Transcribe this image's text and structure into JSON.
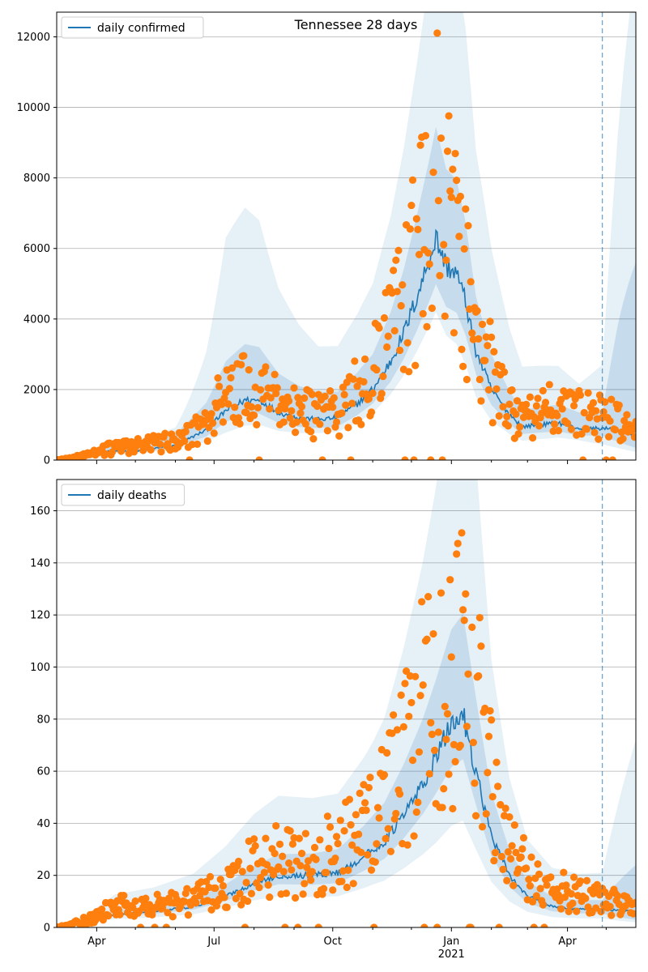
{
  "chart_data": [
    {
      "type": "line",
      "title": "Tennessee 28 days",
      "xlabel": "",
      "ylabel": "",
      "x_range": [
        "2020-03-01",
        "2021-05-24"
      ],
      "ylim": [
        0,
        12700
      ],
      "yticks": [
        0,
        2000,
        4000,
        6000,
        8000,
        10000,
        12000
      ],
      "grid": "y",
      "legend": "top-left",
      "forecast_start": "2021-04-28",
      "colors": {
        "line": "#1f77b4",
        "points": "#ff7f0e",
        "band": "#1f77b4",
        "marker_line": "#1f77b4"
      },
      "series": [
        {
          "name": "daily confirmed",
          "kind": "line"
        },
        {
          "kind": "scatter"
        },
        {
          "kind": "bands"
        }
      ],
      "line_knots": [
        [
          "2020-03-01",
          0
        ],
        [
          "2020-03-20",
          60
        ],
        [
          "2020-04-10",
          250
        ],
        [
          "2020-05-01",
          250
        ],
        [
          "2020-06-01",
          420
        ],
        [
          "2020-06-25",
          850
        ],
        [
          "2020-07-10",
          1400
        ],
        [
          "2020-07-25",
          1700
        ],
        [
          "2020-08-05",
          1700
        ],
        [
          "2020-08-20",
          1350
        ],
        [
          "2020-09-05",
          1200
        ],
        [
          "2020-09-20",
          1150
        ],
        [
          "2020-10-05",
          1200
        ],
        [
          "2020-10-20",
          1600
        ],
        [
          "2020-11-01",
          2000
        ],
        [
          "2020-11-15",
          2800
        ],
        [
          "2020-11-25",
          3600
        ],
        [
          "2020-12-05",
          4600
        ],
        [
          "2020-12-15",
          5700
        ],
        [
          "2020-12-20",
          6300
        ],
        [
          "2020-12-28",
          5500
        ],
        [
          "2021-01-05",
          5300
        ],
        [
          "2021-01-12",
          4500
        ],
        [
          "2021-01-20",
          3100
        ],
        [
          "2021-02-01",
          2000
        ],
        [
          "2021-02-15",
          1300
        ],
        [
          "2021-02-25",
          950
        ],
        [
          "2021-03-10",
          1000
        ],
        [
          "2021-03-25",
          1050
        ],
        [
          "2021-04-10",
          900
        ],
        [
          "2021-04-28",
          900
        ],
        [
          "2021-05-10",
          850
        ],
        [
          "2021-05-24",
          700
        ]
      ],
      "scatter_knots": [
        [
          "2020-03-01",
          0
        ],
        [
          "2020-03-20",
          100
        ],
        [
          "2020-04-10",
          300
        ],
        [
          "2020-05-01",
          400
        ],
        [
          "2020-06-01",
          500
        ],
        [
          "2020-06-25",
          1000
        ],
        [
          "2020-07-10",
          1800
        ],
        [
          "2020-07-25",
          2200
        ],
        [
          "2020-08-05",
          2000
        ],
        [
          "2020-08-20",
          1500
        ],
        [
          "2020-09-05",
          1300
        ],
        [
          "2020-09-20",
          1300
        ],
        [
          "2020-10-05",
          1400
        ],
        [
          "2020-10-20",
          1900
        ],
        [
          "2020-11-01",
          2300
        ],
        [
          "2020-11-15",
          3300
        ],
        [
          "2020-11-25",
          4200
        ],
        [
          "2020-12-05",
          5500
        ],
        [
          "2020-12-15",
          7500
        ],
        [
          "2020-12-20",
          9000
        ],
        [
          "2020-12-28",
          7000
        ],
        [
          "2021-01-05",
          6000
        ],
        [
          "2021-01-12",
          5000
        ],
        [
          "2021-01-20",
          3500
        ],
        [
          "2021-02-01",
          2400
        ],
        [
          "2021-02-15",
          1500
        ],
        [
          "2021-02-25",
          1100
        ],
        [
          "2021-03-10",
          1300
        ],
        [
          "2021-03-25",
          1400
        ],
        [
          "2021-04-10",
          1300
        ],
        [
          "2021-04-28",
          1300
        ],
        [
          "2021-05-10",
          1100
        ],
        [
          "2021-05-24",
          900
        ]
      ],
      "band_outer": [
        [
          "2020-03-01",
          1.2,
          1.8
        ],
        [
          "2020-06-01",
          1.4,
          2.2
        ],
        [
          "2020-07-10",
          1.8,
          4.5
        ],
        [
          "2020-08-05",
          1.7,
          4.0
        ],
        [
          "2020-09-20",
          1.5,
          2.8
        ],
        [
          "2020-11-01",
          1.5,
          2.5
        ],
        [
          "2020-12-20",
          1.5,
          2.4
        ],
        [
          "2021-02-01",
          1.8,
          3.0
        ],
        [
          "2021-04-10",
          1.6,
          2.4
        ],
        [
          "2021-04-28",
          2.0,
          3.0
        ],
        [
          "2021-05-24",
          3.0,
          20.0
        ]
      ],
      "band_mid": [
        [
          "2020-03-01",
          1.05,
          1.25
        ],
        [
          "2020-07-10",
          1.3,
          2.0
        ],
        [
          "2020-11-01",
          1.25,
          1.5
        ],
        [
          "2021-04-28",
          1.3,
          1.5
        ],
        [
          "2021-05-24",
          2.0,
          8.0
        ]
      ]
    },
    {
      "type": "line",
      "title": "",
      "xlabel": "",
      "ylabel": "",
      "x_range": [
        "2020-03-01",
        "2021-05-24"
      ],
      "ylim": [
        0,
        172
      ],
      "yticks": [
        0,
        20,
        40,
        60,
        80,
        100,
        120,
        140,
        160
      ],
      "xticks": [
        {
          "date": "2020-04-01",
          "label": "Apr"
        },
        {
          "date": "2020-07-01",
          "label": "Jul"
        },
        {
          "date": "2020-10-01",
          "label": "Oct"
        },
        {
          "date": "2021-01-01",
          "label": "Jan",
          "label2": "2021"
        },
        {
          "date": "2021-04-01",
          "label": "Apr"
        }
      ],
      "grid": "y",
      "legend": "top-left",
      "forecast_start": "2021-04-28",
      "colors": {
        "line": "#1f77b4",
        "points": "#ff7f0e",
        "band": "#1f77b4",
        "marker_line": "#1f77b4"
      },
      "series": [
        {
          "name": "daily deaths",
          "kind": "line"
        },
        {
          "kind": "scatter"
        },
        {
          "kind": "bands"
        }
      ],
      "line_knots": [
        [
          "2020-03-01",
          0
        ],
        [
          "2020-03-25",
          2
        ],
        [
          "2020-04-15",
          5
        ],
        [
          "2020-05-15",
          6
        ],
        [
          "2020-06-15",
          8
        ],
        [
          "2020-07-10",
          12
        ],
        [
          "2020-08-01",
          17
        ],
        [
          "2020-08-20",
          20
        ],
        [
          "2020-09-15",
          20
        ],
        [
          "2020-10-05",
          21
        ],
        [
          "2020-10-25",
          27
        ],
        [
          "2020-11-10",
          33
        ],
        [
          "2020-11-25",
          43
        ],
        [
          "2020-12-10",
          55
        ],
        [
          "2020-12-20",
          65
        ],
        [
          "2021-01-01",
          78
        ],
        [
          "2021-01-10",
          82
        ],
        [
          "2021-01-20",
          60
        ],
        [
          "2021-02-01",
          35
        ],
        [
          "2021-02-15",
          20
        ],
        [
          "2021-03-01",
          12
        ],
        [
          "2021-03-20",
          8
        ],
        [
          "2021-04-10",
          7
        ],
        [
          "2021-04-28",
          7
        ],
        [
          "2021-05-24",
          6
        ]
      ],
      "scatter_knots": [
        [
          "2020-03-01",
          0
        ],
        [
          "2020-03-25",
          3
        ],
        [
          "2020-04-15",
          8
        ],
        [
          "2020-05-15",
          8
        ],
        [
          "2020-06-15",
          10
        ],
        [
          "2020-07-10",
          15
        ],
        [
          "2020-08-01",
          22
        ],
        [
          "2020-08-20",
          25
        ],
        [
          "2020-09-15",
          25
        ],
        [
          "2020-10-05",
          28
        ],
        [
          "2020-10-25",
          35
        ],
        [
          "2020-11-10",
          45
        ],
        [
          "2020-11-25",
          60
        ],
        [
          "2020-12-10",
          80
        ],
        [
          "2020-12-20",
          95
        ],
        [
          "2021-01-01",
          100
        ],
        [
          "2021-01-10",
          110
        ],
        [
          "2021-01-20",
          90
        ],
        [
          "2021-02-01",
          50
        ],
        [
          "2021-02-15",
          30
        ],
        [
          "2021-03-01",
          20
        ],
        [
          "2021-03-20",
          15
        ],
        [
          "2021-04-10",
          12
        ],
        [
          "2021-04-28",
          10
        ],
        [
          "2021-05-24",
          8
        ]
      ],
      "band_outer": [
        [
          "2020-03-01",
          1.5,
          2.5
        ],
        [
          "2020-07-10",
          1.6,
          2.6
        ],
        [
          "2020-11-01",
          1.8,
          2.4
        ],
        [
          "2020-12-20",
          2.0,
          2.6
        ],
        [
          "2021-01-20",
          2.0,
          3.0
        ],
        [
          "2021-03-01",
          2.0,
          2.8
        ],
        [
          "2021-04-28",
          2.0,
          3.0
        ],
        [
          "2021-05-24",
          3.0,
          12.0
        ]
      ],
      "band_mid": [
        [
          "2020-03-01",
          1.1,
          1.3
        ],
        [
          "2020-11-01",
          1.25,
          1.45
        ],
        [
          "2021-04-28",
          1.3,
          1.5
        ],
        [
          "2021-05-24",
          2.0,
          4.0
        ]
      ]
    }
  ]
}
